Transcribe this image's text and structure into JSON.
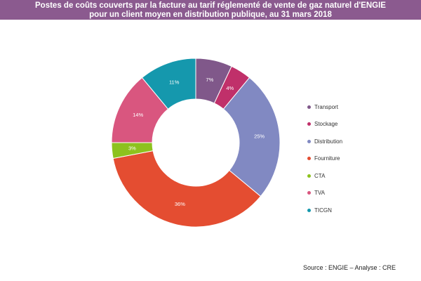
{
  "header": {
    "title_line1": "Postes de coûts couverts par la facture au tarif réglementé de vente de gaz naturel d'ENGIE",
    "title_line2": "pour un client moyen en distribution publique, au 31 mars 2018"
  },
  "chart_data": {
    "type": "pie",
    "subtype": "donut",
    "title": "Postes de coûts couverts par la facture au tarif réglementé de vente de gaz naturel d'ENGIE pour un client moyen en distribution publique, au 31 mars 2018",
    "unit": "%",
    "legend_position": "right",
    "slices": [
      {
        "label": "Transport",
        "value": 7,
        "display": "7%",
        "color": "#80588a"
      },
      {
        "label": "Stockage",
        "value": 4,
        "display": "4%",
        "color": "#c0306a"
      },
      {
        "label": "Distribution",
        "value": 25,
        "display": "25%",
        "color": "#8189c2"
      },
      {
        "label": "Fourniture",
        "value": 36,
        "display": "36%",
        "color": "#e44d31"
      },
      {
        "label": "CTA",
        "value": 3,
        "display": "3%",
        "color": "#8dc21e"
      },
      {
        "label": "TVA",
        "value": 14,
        "display": "14%",
        "color": "#d9567f"
      },
      {
        "label": "TICGN",
        "value": 11,
        "display": "11%",
        "color": "#1598ad"
      }
    ]
  },
  "footer": {
    "source": "Source : ENGIE – Analyse : CRE"
  }
}
